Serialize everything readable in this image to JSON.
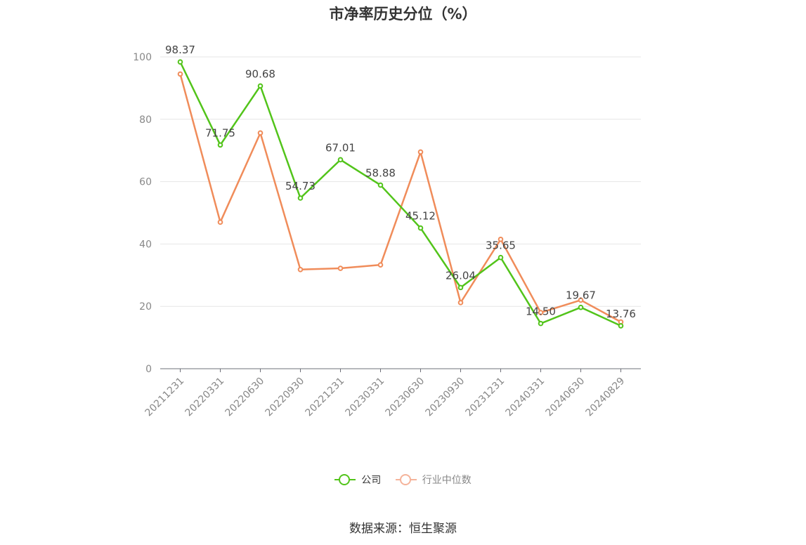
{
  "chart_data": {
    "type": "line",
    "title": "市净率历史分位（%）",
    "categories": [
      "20211231",
      "20220331",
      "20220630",
      "20220930",
      "20221231",
      "20230331",
      "20230630",
      "20230930",
      "20231231",
      "20240331",
      "20240630",
      "20240829"
    ],
    "series": [
      {
        "name": "公司",
        "color": "#52c41a",
        "values": [
          98.37,
          71.75,
          90.68,
          54.73,
          67.01,
          58.88,
          45.12,
          26.04,
          35.65,
          14.5,
          19.67,
          13.76
        ],
        "labels": [
          "98.37",
          "71.75",
          "90.68",
          "54.73",
          "67.01",
          "58.88",
          "45.12",
          "26.04",
          "35.65",
          "14.50",
          "19.67",
          "13.76"
        ]
      },
      {
        "name": "行业中位数",
        "color": "#f08c5a",
        "values": [
          94.5,
          47.0,
          75.6,
          31.8,
          32.2,
          33.3,
          69.5,
          21.2,
          41.5,
          18.0,
          22.0,
          15.0
        ]
      }
    ],
    "yticks": [
      "0",
      "20",
      "40",
      "60",
      "80",
      "100"
    ],
    "ylim": [
      0,
      100
    ],
    "grid": true,
    "legend_position": "bottom"
  },
  "legend": {
    "company": "公司",
    "industry": "行业中位数"
  },
  "source": "数据来源：恒生聚源"
}
